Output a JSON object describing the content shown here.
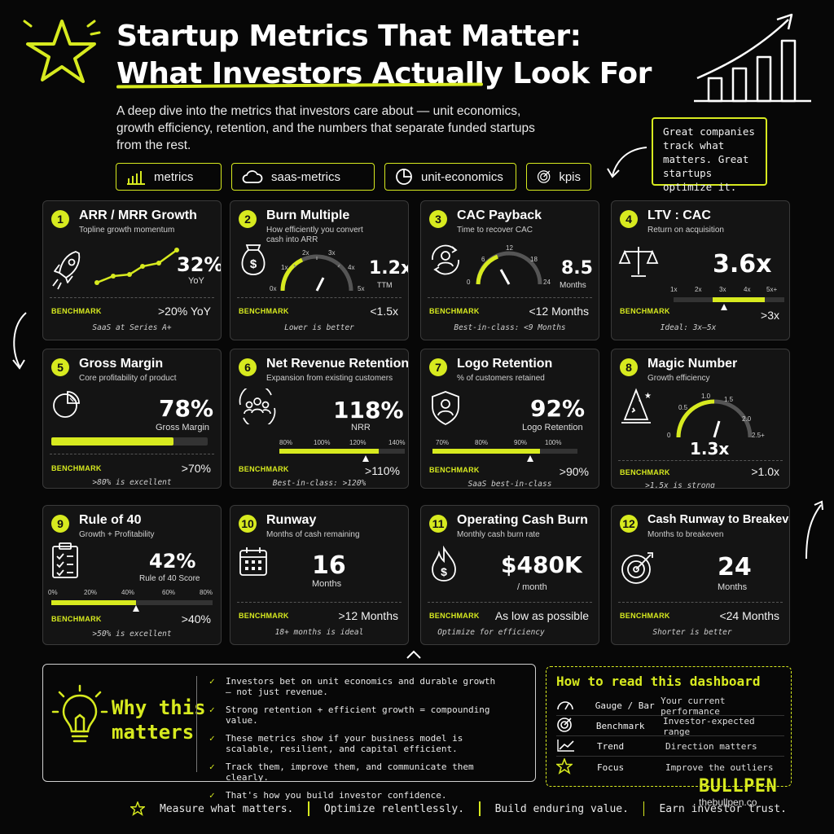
{
  "header": {
    "title_line1": "Startup Metrics That Matter:",
    "title_line2": "What Investors Actually Look For",
    "subtitle": "A deep dive into the metrics that investors care about — unit economics, growth efficiency, retention, and the numbers that separate funded startups from the rest.",
    "note": "Great companies track what matters. Great startups optimize it.",
    "tags": [
      {
        "label": "metrics",
        "icon": "bar-chart-icon"
      },
      {
        "label": "saas-metrics",
        "icon": "cloud-icon"
      },
      {
        "label": "unit-economics",
        "icon": "pie-chart-icon"
      },
      {
        "label": "kpis",
        "icon": "target-icon"
      }
    ]
  },
  "accent_color": "#d7ea1f",
  "cards": [
    {
      "n": "1",
      "title": "ARR / MRR Growth",
      "subtitle": "Topline growth momentum",
      "value": "32%",
      "unit": "YoY",
      "benchmark_label": "BENCHMARK",
      "benchmark": ">20% YoY",
      "note": "SaaS at Series A+",
      "icon": "rocket-icon"
    },
    {
      "n": "2",
      "title": "Burn Multiple",
      "subtitle": "How efficiently you convert cash into ARR",
      "value": "1.2x",
      "unit": "TTM",
      "benchmark_label": "BENCHMARK",
      "benchmark": "<1.5x",
      "note": "Lower is better",
      "icon": "money-bag-icon",
      "gauge_ticks": [
        "0x",
        "1x",
        "2x",
        "3x",
        "4x",
        "5x"
      ]
    },
    {
      "n": "3",
      "title": "CAC Payback",
      "subtitle": "Time to recover CAC",
      "value": "8.5",
      "unit": "Months",
      "benchmark_label": "BENCHMARK",
      "benchmark": "<12 Months",
      "note": "Best-in-class: <9 Months",
      "icon": "user-cycle-icon",
      "gauge_ticks": [
        "0",
        "6",
        "12",
        "18",
        "24"
      ]
    },
    {
      "n": "4",
      "title": "LTV : CAC",
      "subtitle": "Return on acquisition",
      "value": "3.6x",
      "unit": "",
      "benchmark_label": "BENCHMARK",
      "benchmark": ">3x",
      "note": "Ideal: 3x–5x",
      "icon": "scale-icon",
      "scale_ticks": [
        "1x",
        "2x",
        "3x",
        "4x",
        "5x+"
      ]
    },
    {
      "n": "5",
      "title": "Gross Margin",
      "subtitle": "Core profitability of product",
      "value": "78%",
      "unit": "Gross Margin",
      "benchmark_label": "BENCHMARK",
      "benchmark": ">70%",
      "note": ">80% is excellent",
      "icon": "pie-icon",
      "progress": 0.78
    },
    {
      "n": "6",
      "title": "Net Revenue Retention",
      "subtitle": "Expansion from existing customers",
      "value": "118%",
      "unit": "NRR",
      "benchmark_label": "BENCHMARK",
      "benchmark": ">110%",
      "note": "Best-in-class: >120%",
      "icon": "users-cycle-icon",
      "scale_ticks": [
        "80%",
        "100%",
        "120%",
        "140%"
      ]
    },
    {
      "n": "7",
      "title": "Logo Retention",
      "subtitle": "% of customers retained",
      "value": "92%",
      "unit": "Logo Retention",
      "benchmark_label": "BENCHMARK",
      "benchmark": ">90%",
      "note": "SaaS best-in-class",
      "icon": "shield-user-icon",
      "scale_ticks": [
        "70%",
        "80%",
        "90%",
        "100%"
      ]
    },
    {
      "n": "8",
      "title": "Magic Number",
      "subtitle": "Growth efficiency",
      "value": "1.3x",
      "unit": "",
      "benchmark_label": "BENCHMARK",
      "benchmark": ">1.0x",
      "note": ">1.5x is strong",
      "icon": "wizard-hat-icon",
      "gauge_ticks": [
        "0",
        "0.5",
        "1.0",
        "1.5",
        "2.0",
        "2.5+"
      ]
    },
    {
      "n": "9",
      "title": "Rule of 40",
      "subtitle": "Growth + Profitability",
      "value": "42%",
      "unit": "Rule of 40 Score",
      "benchmark_label": "BENCHMARK",
      "benchmark": ">40%",
      "note": ">50% is excellent",
      "icon": "clipboard-check-icon",
      "scale_ticks": [
        "0%",
        "20%",
        "40%",
        "60%",
        "80%"
      ]
    },
    {
      "n": "10",
      "title": "Runway",
      "subtitle": "Months of cash remaining",
      "value": "16",
      "unit": "Months",
      "benchmark_label": "BENCHMARK",
      "benchmark": ">12 Months",
      "note": "18+ months is ideal",
      "icon": "calendar-icon"
    },
    {
      "n": "11",
      "title": "Operating Cash Burn",
      "subtitle": "Monthly cash burn rate",
      "value": "$480K",
      "unit": "/ month",
      "benchmark_label": "BENCHMARK",
      "benchmark": "As low as possible",
      "note": "Optimize for efficiency",
      "icon": "flame-dollar-icon"
    },
    {
      "n": "12",
      "title": "Cash Runway to Breakeven",
      "subtitle": "Months to breakeven",
      "value": "24",
      "unit": "Months",
      "benchmark_label": "BENCHMARK",
      "benchmark": "<24 Months",
      "note": "Shorter is better",
      "icon": "target-arrow-icon"
    }
  ],
  "why": {
    "title_line1": "Why this",
    "title_line2": "matters",
    "points": [
      "Investors bet on unit economics and durable growth — not just revenue.",
      "Strong retention + efficient growth = compounding value.",
      "These metrics show if your business model is scalable, resilient, and capital efficient.",
      "Track them, improve them, and communicate them clearly.",
      "That's how you build investor confidence."
    ]
  },
  "how": {
    "title": "How to read this dashboard",
    "rows": [
      {
        "icon": "gauge-icon",
        "label": "Gauge / Bar",
        "desc": "Your current performance"
      },
      {
        "icon": "target-icon",
        "label": "Benchmark",
        "desc": "Investor-expected range"
      },
      {
        "icon": "trend-icon",
        "label": "Trend",
        "desc": "Direction matters"
      },
      {
        "icon": "star-icon",
        "label": "Focus",
        "desc": "Improve the outliers"
      }
    ]
  },
  "brand": {
    "name": "BULLPEN",
    "url": "thebullpen.co"
  },
  "footer": [
    "Measure what matters.",
    "Optimize relentlessly.",
    "Build enduring value.",
    "Earn investor trust."
  ]
}
